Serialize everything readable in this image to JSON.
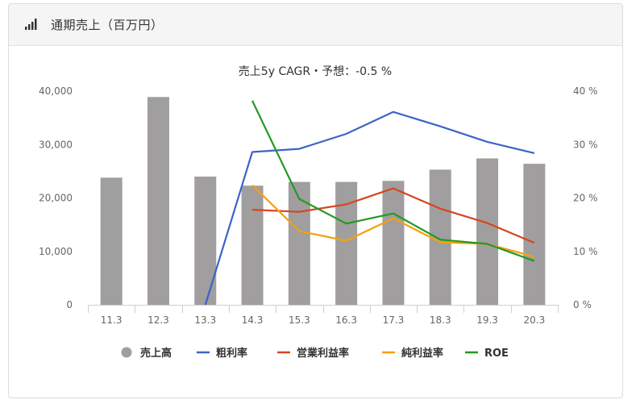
{
  "panel": {
    "title": "通期売上（百万円）",
    "icon": "bar-signal-icon"
  },
  "chart_data": {
    "type": "bar",
    "title": "売上5y CAGR・予想：-0.5 %",
    "categories": [
      "11.3",
      "12.3",
      "13.3",
      "14.3",
      "15.3",
      "16.3",
      "17.3",
      "18.3",
      "19.3",
      "20.3"
    ],
    "left_axis": {
      "ylim": [
        0,
        40000
      ],
      "ticks": [
        "0",
        "10,000",
        "20,000",
        "30,000",
        "40,000"
      ]
    },
    "right_axis": {
      "ylim": [
        0,
        40
      ],
      "ticks": [
        "0 %",
        "10 %",
        "20 %",
        "30 %",
        "40 %"
      ]
    },
    "bar_series": {
      "name": "売上高",
      "color": "#a09e9e",
      "values": [
        23800,
        38900,
        24000,
        22300,
        23000,
        23000,
        23200,
        25300,
        27400,
        26400
      ]
    },
    "line_series": [
      {
        "name": "粗利率",
        "color": "#3b64c8",
        "values": [
          null,
          null,
          0,
          28.6,
          29.2,
          32.0,
          36.1,
          33.4,
          30.5,
          28.4
        ]
      },
      {
        "name": "営業利益率",
        "color": "#d9441f",
        "values": [
          null,
          null,
          null,
          17.8,
          17.4,
          18.8,
          21.8,
          18.0,
          15.3,
          11.6
        ]
      },
      {
        "name": "純利益率",
        "color": "#f5a011",
        "values": [
          null,
          null,
          null,
          22.4,
          13.8,
          12.0,
          16.2,
          11.7,
          11.4,
          9.0
        ]
      },
      {
        "name": "ROE",
        "color": "#229a22",
        "values": [
          null,
          null,
          null,
          38.2,
          19.8,
          15.2,
          17.1,
          12.2,
          11.4,
          8.2
        ]
      }
    ],
    "legend_position": "bottom",
    "grid": false
  }
}
